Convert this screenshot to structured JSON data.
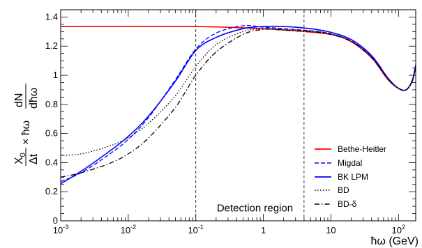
{
  "chart_data": {
    "type": "line",
    "xscale": "log",
    "xlim": [
      0.001,
      180
    ],
    "ylim": [
      0,
      1.45
    ],
    "xlabel": "ħω (GeV)",
    "ylabel": {
      "lead": "X",
      "lead_sub": "0",
      "lead_den": "Δt",
      "times": "× ħω",
      "frac_num": "dN",
      "frac_den": "dħω"
    },
    "x_ticks": [
      {
        "value": 0.001,
        "base": "10",
        "exp": "-3"
      },
      {
        "value": 0.01,
        "base": "10",
        "exp": "-2"
      },
      {
        "value": 0.1,
        "base": "10",
        "exp": "-1"
      },
      {
        "value": 1,
        "base": "1",
        "exp": ""
      },
      {
        "value": 10,
        "base": "10",
        "exp": ""
      },
      {
        "value": 100,
        "base": "10",
        "exp": "2"
      }
    ],
    "y_ticks": [
      0,
      0.2,
      0.4,
      0.6,
      0.8,
      1,
      1.2,
      1.4
    ],
    "y_tick_labels": [
      "0",
      "0.2",
      "0.4",
      "0.6",
      "0.8",
      "1",
      "1.2",
      "1.4"
    ],
    "annotations": [
      {
        "text": "Detection region",
        "x": 0.75,
        "y": 0.065
      }
    ],
    "vlines": [
      0.1,
      4
    ],
    "legend_position": "bottom-right",
    "series": [
      {
        "name": "Bethe-Heitler",
        "color": "#ff0000",
        "dash": "solid",
        "x": [
          0.001,
          0.1,
          1,
          3,
          10,
          20,
          40,
          70,
          100,
          130,
          160,
          180
        ],
        "y": [
          1.335,
          1.335,
          1.32,
          1.305,
          1.28,
          1.23,
          1.12,
          0.97,
          0.91,
          0.9,
          0.96,
          1.06
        ]
      },
      {
        "name": "Migdal",
        "color": "#0000ff",
        "dash": "dashed",
        "x": [
          0.001,
          0.002,
          0.005,
          0.01,
          0.02,
          0.05,
          0.1,
          0.2,
          0.5,
          1,
          2,
          5,
          10,
          20,
          40,
          70,
          100,
          130,
          160,
          180
        ],
        "y": [
          0.27,
          0.33,
          0.45,
          0.56,
          0.71,
          0.97,
          1.18,
          1.29,
          1.34,
          1.33,
          1.32,
          1.305,
          1.285,
          1.235,
          1.125,
          0.975,
          0.91,
          0.9,
          0.96,
          1.06
        ]
      },
      {
        "name": "BK LPM",
        "color": "#0000ff",
        "dash": "solid",
        "x": [
          0.001,
          0.002,
          0.005,
          0.01,
          0.02,
          0.05,
          0.1,
          0.2,
          0.5,
          1,
          2,
          5,
          10,
          20,
          40,
          70,
          100,
          130,
          160,
          180
        ],
        "y": [
          0.255,
          0.34,
          0.47,
          0.58,
          0.72,
          0.96,
          1.17,
          1.26,
          1.32,
          1.335,
          1.335,
          1.32,
          1.295,
          1.245,
          1.135,
          0.98,
          0.91,
          0.9,
          0.965,
          1.07
        ]
      },
      {
        "name": "BD",
        "color": "#000000",
        "dash": "dotted",
        "x": [
          0.001,
          0.002,
          0.005,
          0.01,
          0.02,
          0.05,
          0.1,
          0.2,
          0.5,
          1,
          2,
          5,
          10,
          20,
          40,
          70,
          100,
          130,
          160,
          180
        ],
        "y": [
          0.45,
          0.46,
          0.51,
          0.57,
          0.67,
          0.86,
          1.06,
          1.21,
          1.3,
          1.32,
          1.315,
          1.305,
          1.285,
          1.235,
          1.125,
          0.975,
          0.91,
          0.9,
          0.96,
          1.06
        ]
      },
      {
        "name": "BD-δ",
        "color": "#000000",
        "dash": "dashdot",
        "x": [
          0.001,
          0.002,
          0.005,
          0.01,
          0.02,
          0.05,
          0.1,
          0.2,
          0.5,
          1,
          2,
          5,
          10,
          20,
          40,
          70,
          100,
          130,
          160,
          180
        ],
        "y": [
          0.3,
          0.33,
          0.39,
          0.46,
          0.57,
          0.78,
          1.0,
          1.16,
          1.28,
          1.315,
          1.31,
          1.3,
          1.28,
          1.232,
          1.122,
          0.973,
          0.91,
          0.9,
          0.96,
          1.06
        ]
      }
    ]
  }
}
